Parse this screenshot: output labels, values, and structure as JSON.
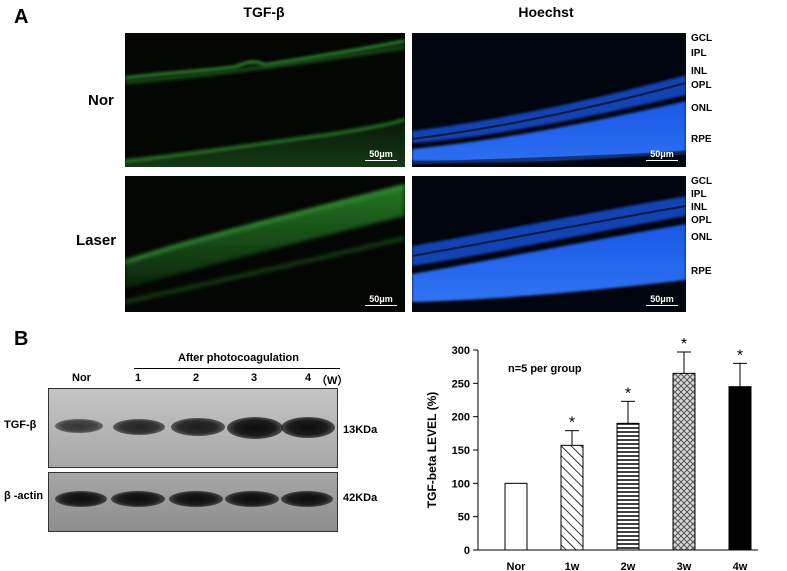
{
  "panel_a": {
    "label": "A",
    "columns": [
      "TGF-β",
      "Hoechst"
    ],
    "rows": [
      "Nor",
      "Laser"
    ],
    "scale_bar": "50μm",
    "layers_nor": [
      "GCL",
      "IPL",
      "INL",
      "OPL",
      "ONL",
      "RPE"
    ],
    "layers_laser": [
      "GCL",
      "IPL",
      "INL",
      "OPL",
      "ONL",
      "RPE"
    ]
  },
  "panel_b": {
    "label": "B",
    "blot": {
      "group_header": "After photocoagulation",
      "lanes": [
        "Nor",
        "1",
        "2",
        "3",
        "4"
      ],
      "lane_unit": "（W）",
      "proteins": [
        {
          "name": "TGF-β",
          "size": "13KDa"
        },
        {
          "name": "β -actin",
          "size": "42KDa"
        }
      ],
      "tgf_band_intensity": [
        0.55,
        0.75,
        0.85,
        1.0,
        0.95
      ]
    }
  },
  "chart_data": {
    "type": "bar",
    "annotation": "n=5 per group",
    "categories": [
      "Nor",
      "1w",
      "2w",
      "3w",
      "4w"
    ],
    "values": [
      100,
      157,
      190,
      265,
      245
    ],
    "errors": [
      0,
      22,
      33,
      32,
      35
    ],
    "significance": [
      "",
      "*",
      "*",
      "*",
      "*"
    ],
    "fills": [
      "none",
      "diagonal",
      "horizontal",
      "crosshatch",
      "solid"
    ],
    "ylabel": "TGF-beta  LEVEL (%)",
    "ylim": [
      0,
      300
    ],
    "yticks": [
      0,
      50,
      100,
      150,
      200,
      250,
      300
    ]
  }
}
